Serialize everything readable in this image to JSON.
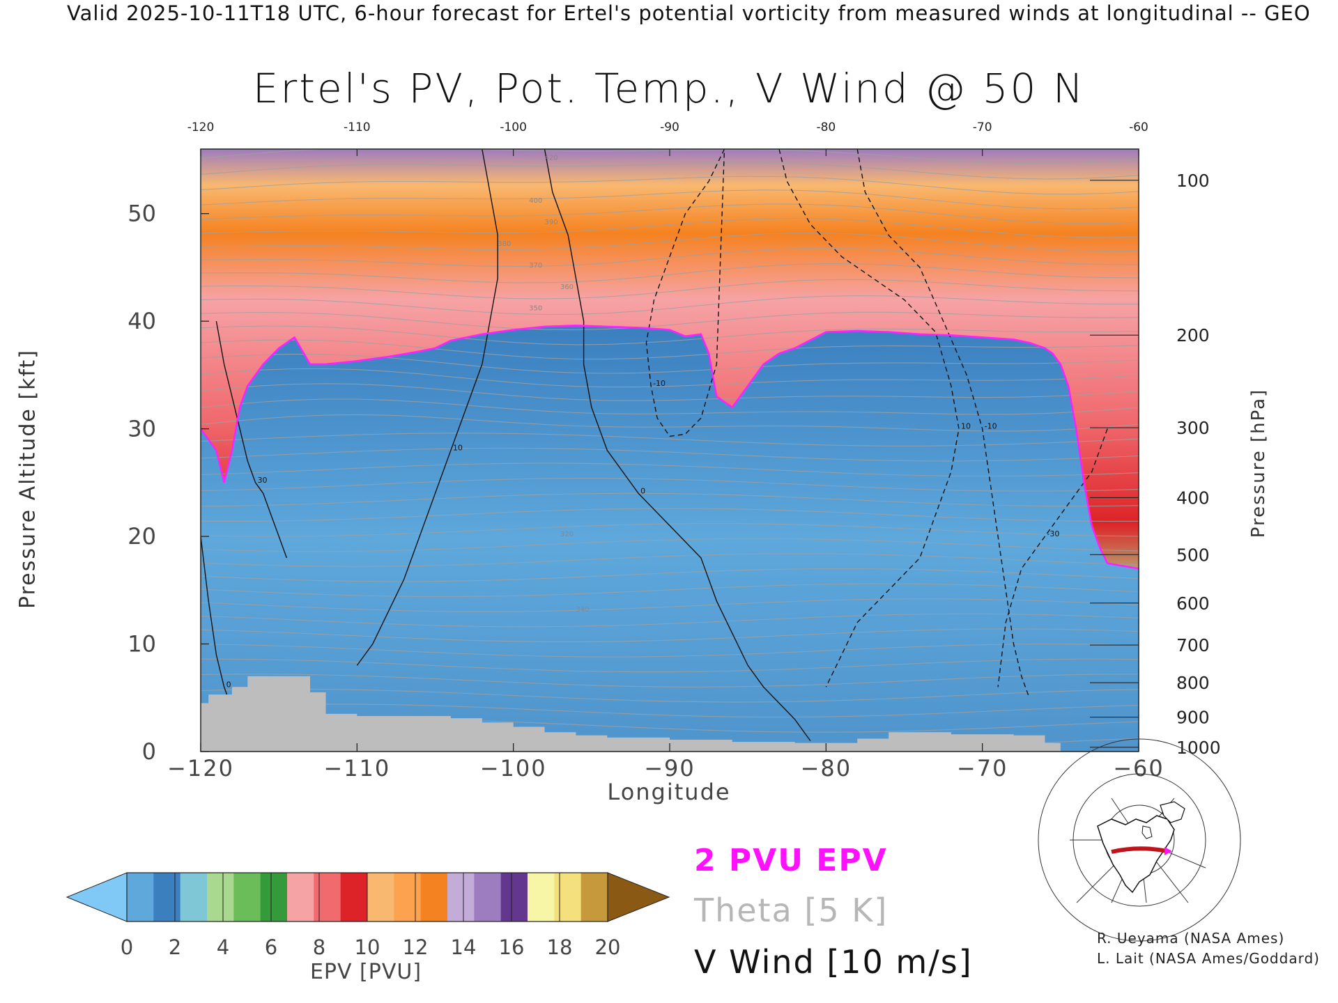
{
  "header": {
    "text": "Valid 2025-10-11T18 UTC, 6-hour forecast for Ertel's potential vorticity from measured winds at longitudinal -- GEO"
  },
  "chart_data": {
    "type": "heatmap",
    "title": "Ertel's PV, Pot. Temp., V Wind @ 50 N",
    "xlabel": "Longitude",
    "ylabel_left": "Pressure Altitude [kft]",
    "ylabel_right": "Pressure [hPa]",
    "xlim": [
      -120,
      -60
    ],
    "ylim": [
      0,
      56
    ],
    "x_ticks": [
      -120,
      -110,
      -100,
      -90,
      -80,
      -70,
      -60
    ],
    "x_tick_labels": [
      "−120",
      "−110",
      "−100",
      "−90",
      "−80",
      "−70",
      "−60"
    ],
    "top_tick_labels": [
      "-120",
      "-110",
      "-100",
      "-90",
      "-80",
      "-70",
      "-60"
    ],
    "y_ticks": [
      0,
      10,
      20,
      30,
      40,
      50
    ],
    "y_tick_labels": [
      "0",
      "10",
      "20",
      "30",
      "40",
      "50"
    ],
    "pressure_ticks": [
      {
        "hpa": "100",
        "kft": 53.1
      },
      {
        "hpa": "200",
        "kft": 38.7
      },
      {
        "hpa": "300",
        "kft": 30.1
      },
      {
        "hpa": "400",
        "kft": 23.6
      },
      {
        "hpa": "500",
        "kft": 18.3
      },
      {
        "hpa": "600",
        "kft": 13.8
      },
      {
        "hpa": "700",
        "kft": 9.9
      },
      {
        "hpa": "800",
        "kft": 6.4
      },
      {
        "hpa": "900",
        "kft": 3.2
      },
      {
        "hpa": "1000",
        "kft": 0.4
      }
    ],
    "tropopause_2pvu": {
      "lon": [
        -120,
        -119,
        -118.5,
        -118,
        -117.5,
        -117,
        -116,
        -115,
        -114,
        -113,
        -112,
        -110,
        -108,
        -106,
        -105,
        -104,
        -102,
        -100,
        -98,
        -96,
        -94,
        -92,
        -90,
        -89,
        -88,
        -87.5,
        -87,
        -86,
        -85,
        -84,
        -83,
        -82,
        -80,
        -78,
        -76,
        -74,
        -72,
        -70,
        -68,
        -67,
        -66,
        -65.5,
        -65,
        -64.5,
        -64,
        -63.5,
        -63,
        -62.5,
        -62,
        -60
      ],
      "kft": [
        30,
        28,
        25,
        28,
        32,
        34,
        36,
        37.5,
        38.5,
        36,
        36,
        36.3,
        36.7,
        37.2,
        37.5,
        38.2,
        38.8,
        39.2,
        39.5,
        39.6,
        39.5,
        39.4,
        39.2,
        38.6,
        38.8,
        37,
        33,
        32,
        34,
        36,
        37,
        37.5,
        39,
        39.1,
        39,
        38.8,
        38.7,
        38.5,
        38.3,
        38,
        37.5,
        37,
        36,
        34,
        30,
        25,
        21,
        19,
        17.5,
        17
      ]
    },
    "v_wind_contours": [
      {
        "label": "-10",
        "dashed": true,
        "lon": [
          -86.5,
          -87.5,
          -89,
          -90,
          -91,
          -91.5,
          -91.2,
          -90.8,
          -90,
          -89,
          -88,
          -87,
          -86.5
        ],
        "kft": [
          56,
          53,
          50,
          46,
          42,
          38,
          34,
          31,
          29.3,
          29.5,
          31,
          36,
          56
        ]
      },
      {
        "label": "10",
        "dashed": true,
        "lon": [
          -83,
          -82.5,
          -81,
          -79,
          -77,
          -75,
          -73,
          -72,
          -71.5,
          -72,
          -73,
          -74,
          -76,
          -78,
          -79,
          -80
        ],
        "kft": [
          56,
          53,
          49,
          46,
          44,
          42,
          39,
          34,
          30,
          26,
          22,
          18,
          15,
          12,
          9,
          6
        ]
      },
      {
        "label": "-10",
        "dashed": true,
        "lon": [
          -78,
          -77.5,
          -76,
          -74,
          -72.5,
          -71,
          -70,
          -69.5,
          -69,
          -68.5,
          -68,
          -67.5,
          -67
        ],
        "kft": [
          56,
          52,
          48,
          45,
          40,
          35,
          30,
          25,
          20,
          15,
          10,
          7,
          5
        ]
      },
      {
        "label": "-30",
        "dashed": true,
        "lon": [
          -62,
          -63,
          -64.5,
          -66,
          -67.5,
          -68.5,
          -69
        ],
        "kft": [
          30,
          26,
          23,
          20,
          17,
          12,
          6
        ]
      },
      {
        "label": "0",
        "dashed": false,
        "lon": [
          -98,
          -97.5,
          -96.5,
          -96,
          -95.5,
          -95.5,
          -95,
          -94,
          -92,
          -90,
          -88,
          -87,
          -86,
          -85,
          -84,
          -82,
          -81
        ],
        "kft": [
          56,
          52,
          48,
          44,
          40,
          36,
          32,
          28,
          24,
          21,
          18,
          14,
          11,
          8,
          6,
          3,
          1
        ]
      },
      {
        "label": "10",
        "dashed": false,
        "lon": [
          -102,
          -101.5,
          -101,
          -101,
          -101.5,
          -102,
          -103,
          -104,
          -105,
          -106,
          -107,
          -108,
          -109,
          -110
        ],
        "kft": [
          56,
          52,
          48,
          44,
          40,
          36,
          32,
          28,
          24,
          20,
          16,
          13,
          10,
          8
        ]
      },
      {
        "label": "30",
        "dashed": false,
        "lon": [
          -119,
          -118.5,
          -118,
          -117.5,
          -117,
          -116.5,
          -116,
          -115.5,
          -115,
          -114.5
        ],
        "kft": [
          40,
          36,
          33,
          30,
          27,
          25,
          24,
          22,
          20,
          18
        ]
      },
      {
        "label": "0",
        "dashed": false,
        "lon": [
          -120,
          -119.5,
          -119,
          -118.5,
          -118,
          -117.5
        ],
        "kft": [
          20,
          14,
          9,
          6,
          4,
          2
        ]
      }
    ],
    "theta_labels": [
      {
        "text": "420",
        "lon": -98,
        "kft": 55
      },
      {
        "text": "400",
        "lon": -99,
        "kft": 51
      },
      {
        "text": "390",
        "lon": -98,
        "kft": 49
      },
      {
        "text": "380",
        "lon": -101,
        "kft": 47
      },
      {
        "text": "370",
        "lon": -99,
        "kft": 45
      },
      {
        "text": "360",
        "lon": -97,
        "kft": 43
      },
      {
        "text": "350",
        "lon": -99,
        "kft": 41
      },
      {
        "text": "340",
        "lon": -96,
        "kft": 13
      },
      {
        "text": "320",
        "lon": -97,
        "kft": 20
      },
      {
        "text": "300",
        "lon": -113,
        "kft": 5
      }
    ],
    "topography_kft": {
      "lon": [
        -120,
        -119.5,
        -118,
        -117,
        -116,
        -114,
        -113,
        -112,
        -110,
        -108,
        -106,
        -104,
        -102,
        -100,
        -98,
        -96,
        -94,
        -90,
        -86,
        -82,
        -78,
        -76,
        -72,
        -68,
        -66,
        -65
      ],
      "kft": [
        4.5,
        5.3,
        6,
        7,
        7,
        7,
        5.5,
        3.5,
        3.3,
        3.3,
        3.3,
        3.1,
        2.7,
        2.3,
        1.8,
        1.5,
        1.3,
        1.1,
        0.9,
        0.8,
        1.2,
        1.8,
        1.6,
        1.5,
        0.8,
        0.2
      ]
    }
  },
  "colorbar": {
    "label": "EPV [PVU]",
    "tick_labels": [
      "0",
      "2",
      "4",
      "6",
      "8",
      "10",
      "12",
      "14",
      "16",
      "18",
      "20"
    ],
    "under_color": "#80c8f5",
    "over_color": "#8a5a14",
    "colors": [
      "#5ea8dc",
      "#3b7fbf",
      "#7fc7d6",
      "#a8d98e",
      "#6abd58",
      "#349a3a",
      "#f6a3a6",
      "#f06a6e",
      "#dd2327",
      "#f9b870",
      "#fda24e",
      "#f58220",
      "#c3acd7",
      "#9e7cc0",
      "#64378f",
      "#f7f6a6",
      "#f4e07c",
      "#c69a3c"
    ]
  },
  "legend": {
    "epv": "2 PVU EPV",
    "theta": "Theta [5 K]",
    "wind": "V Wind [10 m/s]"
  },
  "credits": [
    "R. Ueyama (NASA Ames)",
    "L. Lait (NASA Ames/Goddard)"
  ],
  "colors": {
    "tropopause": "#ff20ff",
    "theta": "#a0a0a0",
    "wind": "#111111",
    "topography": "#bdbdbd",
    "map_highlight": "#c0141c",
    "map_marker": "#ff10ff"
  }
}
